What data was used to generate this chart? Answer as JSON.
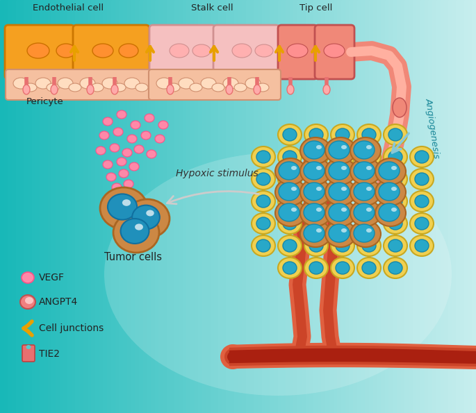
{
  "labels": {
    "endothelial": "Endothelial cell",
    "stalk": "Stalk cell",
    "tip": "Tip cell",
    "pericyte": "Pericyte",
    "tumor": "Tumor cells",
    "hypoxic": "Hypoxic stimulus",
    "angiogenesis": "Angiogenesis",
    "vegf": "VEGF",
    "angpt4": "ANGPT4",
    "cell_junctions": "Cell junctions",
    "tie2": "TIE2"
  },
  "endothelial_color": "#F5A020",
  "stalk_color": "#F5C0C0",
  "tip_color": "#F08878",
  "pericyte_color": "#F5C0A0",
  "tumor_cell_color": "#CC8844",
  "tumor_nucleus_color": "#2090BB",
  "vegf_color": "#FF88A8",
  "angpt4_fill": "#F08080",
  "angpt4_inner": "#FFD0D0",
  "cell_junction_color": "#E8A000",
  "tie2_color": "#E87070",
  "vessel_outer": "#E06040",
  "vessel_mid": "#CC4428",
  "vessel_inner": "#AA2010",
  "arrow_angio": "#88C8D8",
  "arrow_hypoxic": "#AAAAAA",
  "text_color": "#222222",
  "bg_teal": "#30BCBC"
}
